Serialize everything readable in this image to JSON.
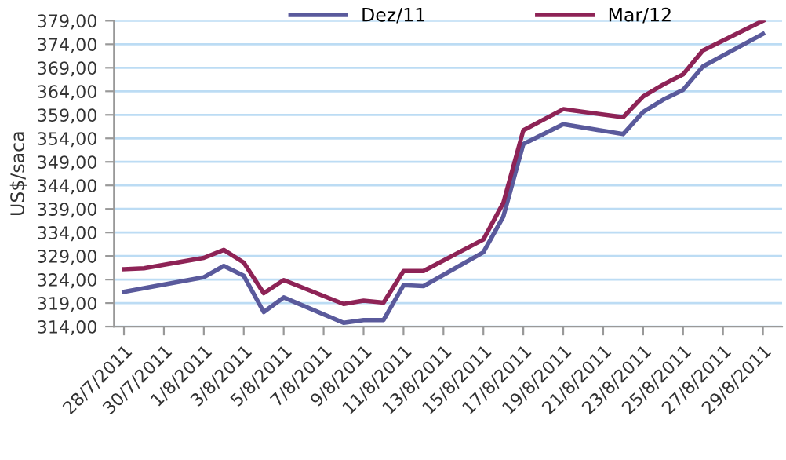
{
  "chart_data": {
    "type": "line",
    "ylabel": "US$/saca",
    "x": [
      "2011-07-28",
      "2011-07-29",
      "2011-08-01",
      "2011-08-02",
      "2011-08-03",
      "2011-08-04",
      "2011-08-05",
      "2011-08-08",
      "2011-08-09",
      "2011-08-10",
      "2011-08-11",
      "2011-08-12",
      "2011-08-15",
      "2011-08-16",
      "2011-08-17",
      "2011-08-19",
      "2011-08-22",
      "2011-08-23",
      "2011-08-24",
      "2011-08-25",
      "2011-08-26",
      "2011-08-29"
    ],
    "series": [
      {
        "name": "Dez/11",
        "color": "#5a5a9c",
        "values": [
          321.4,
          null,
          324.5,
          326.9,
          324.8,
          317.1,
          320.2,
          314.8,
          315.4,
          315.4,
          322.8,
          322.6,
          329.8,
          337.4,
          352.8,
          357.0,
          354.9,
          359.6,
          362.2,
          364.3,
          369.3,
          376.2
        ]
      },
      {
        "name": "Mar/12",
        "color": "#8e2356",
        "values": [
          326.2,
          326.4,
          328.6,
          330.3,
          327.6,
          321.1,
          323.9,
          318.8,
          319.5,
          319.1,
          325.8,
          325.8,
          332.5,
          340.3,
          355.7,
          360.2,
          358.5,
          362.9,
          365.4,
          367.6,
          372.7,
          379.0
        ]
      }
    ],
    "xlim": [
      "2011-07-27T12:00",
      "2011-08-29T23:00"
    ],
    "xticks": [
      {
        "value": "2011-07-28",
        "label": "28/7/2011"
      },
      {
        "value": "2011-07-30",
        "label": "30/7/2011"
      },
      {
        "value": "2011-08-01",
        "label": "1/8/2011"
      },
      {
        "value": "2011-08-03",
        "label": "3/8/2011"
      },
      {
        "value": "2011-08-05",
        "label": "5/8/2011"
      },
      {
        "value": "2011-08-07",
        "label": "7/8/2011"
      },
      {
        "value": "2011-08-09",
        "label": "9/8/2011"
      },
      {
        "value": "2011-08-11",
        "label": "11/8/2011"
      },
      {
        "value": "2011-08-13",
        "label": "13/8/2011"
      },
      {
        "value": "2011-08-15",
        "label": "15/8/2011"
      },
      {
        "value": "2011-08-17",
        "label": "17/8/2011"
      },
      {
        "value": "2011-08-19",
        "label": "19/8/2011"
      },
      {
        "value": "2011-08-21",
        "label": "21/8/2011"
      },
      {
        "value": "2011-08-23",
        "label": "23/8/2011"
      },
      {
        "value": "2011-08-25",
        "label": "25/8/2011"
      },
      {
        "value": "2011-08-27",
        "label": "27/8/2011"
      },
      {
        "value": "2011-08-29",
        "label": "29/8/2011"
      }
    ],
    "ylim": [
      314,
      379
    ],
    "yticks": [
      {
        "value": 314,
        "label": "314,00"
      },
      {
        "value": 319,
        "label": "319,00"
      },
      {
        "value": 324,
        "label": "324,00"
      },
      {
        "value": 329,
        "label": "329,00"
      },
      {
        "value": 334,
        "label": "334,00"
      },
      {
        "value": 339,
        "label": "339,00"
      },
      {
        "value": 344,
        "label": "344,00"
      },
      {
        "value": 349,
        "label": "349,00"
      },
      {
        "value": 354,
        "label": "354,00"
      },
      {
        "value": 359,
        "label": "359,00"
      },
      {
        "value": 364,
        "label": "364,00"
      },
      {
        "value": 369,
        "label": "369,00"
      },
      {
        "value": 374,
        "label": "374,00"
      },
      {
        "value": 379,
        "label": "379,00"
      }
    ],
    "grid": "y",
    "legend": "top",
    "marker": "none",
    "line_style": "solid"
  }
}
